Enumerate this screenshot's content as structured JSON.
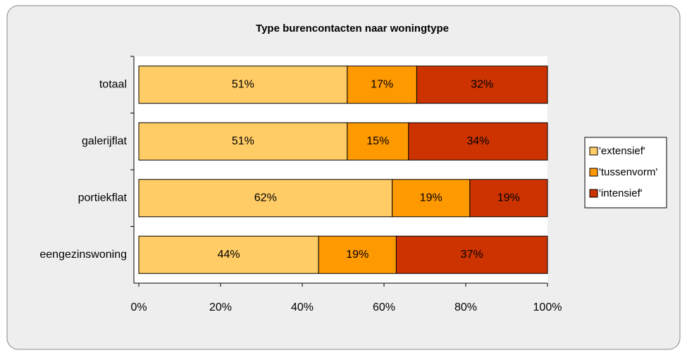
{
  "chart_data": {
    "type": "bar",
    "orientation": "horizontal",
    "stacked": true,
    "title": "Type burencontacten naar woningtype",
    "categories": [
      "totaal",
      "galerijflat",
      "portiekflat",
      "eengezinswoning"
    ],
    "series": [
      {
        "name": "'extensief'",
        "color": "#ffcc66",
        "values": [
          51,
          51,
          62,
          44
        ],
        "value_labels": [
          "51%",
          "51%",
          "62%",
          "44%"
        ]
      },
      {
        "name": "'tussenvorm'",
        "color": "#ff9900",
        "values": [
          17,
          15,
          19,
          19
        ],
        "value_labels": [
          "17%",
          "15%",
          "19%",
          "19%"
        ]
      },
      {
        "name": "'intensief'",
        "color": "#cc3300",
        "values": [
          32,
          34,
          19,
          37
        ],
        "value_labels": [
          "32%",
          "34%",
          "19%",
          "37%"
        ]
      }
    ],
    "xlim": [
      0,
      100
    ],
    "xticks": [
      {
        "value": 0,
        "label": "0%"
      },
      {
        "value": 20,
        "label": "20%"
      },
      {
        "value": 40,
        "label": "40%"
      },
      {
        "value": 60,
        "label": "60%"
      },
      {
        "value": 80,
        "label": "80%"
      },
      {
        "value": 100,
        "label": "100%"
      }
    ],
    "grid": true,
    "legend": "right"
  }
}
